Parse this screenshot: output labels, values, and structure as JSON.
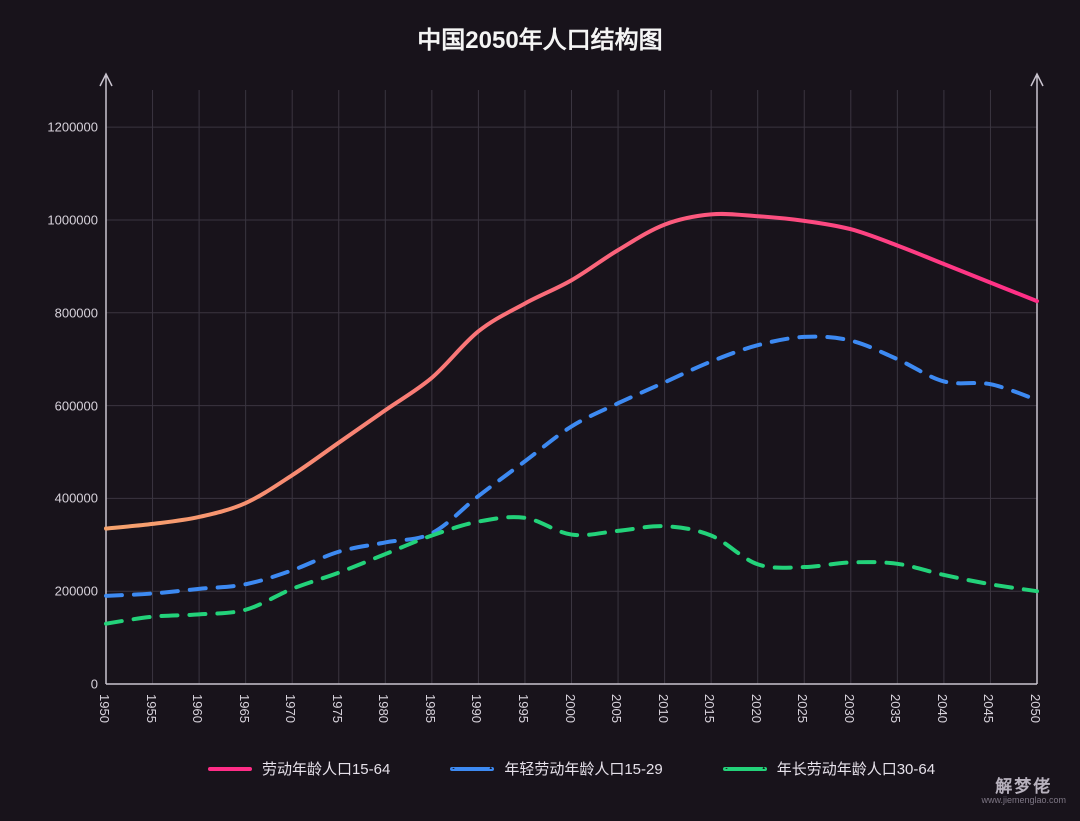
{
  "chart": {
    "type": "line",
    "title": "中国2050年人口结构图",
    "title_fontsize": 24,
    "title_color": "#f5f5f5",
    "background_color": "#18131b",
    "grid_color": "#3a3540",
    "axis_color": "#c9c4cf",
    "tick_label_color": "#d7d2db",
    "tick_fontsize": 13,
    "line_width": 4,
    "x": {
      "categories": [
        1950,
        1955,
        1960,
        1965,
        1970,
        1975,
        1980,
        1985,
        1990,
        1995,
        2000,
        2005,
        2010,
        2015,
        2020,
        2025,
        2030,
        2035,
        2040,
        2045,
        2050
      ],
      "tick_rotation_deg": 90
    },
    "y": {
      "min": 0,
      "max": 1280000,
      "ticks": [
        0,
        200000,
        400000,
        600000,
        800000,
        1000000,
        1200000
      ]
    },
    "series": [
      {
        "id": "s1",
        "label": "劳动年龄人口15-64",
        "color_start": "#f6a36d",
        "color_end": "#ff2d87",
        "gradient": true,
        "dash": "solid",
        "values": [
          335000,
          345000,
          360000,
          390000,
          450000,
          520000,
          590000,
          660000,
          760000,
          820000,
          870000,
          935000,
          990000,
          1012000,
          1008000,
          998000,
          980000,
          945000,
          905000,
          865000,
          825000
        ]
      },
      {
        "id": "s2",
        "label": "年轻劳动年龄人口15-29",
        "color": "#3d8af2",
        "dash": "dashed",
        "dash_pattern": "16 12",
        "values": [
          190000,
          195000,
          205000,
          215000,
          245000,
          285000,
          305000,
          325000,
          405000,
          480000,
          555000,
          605000,
          650000,
          695000,
          730000,
          748000,
          740000,
          700000,
          652000,
          646000,
          612000
        ]
      },
      {
        "id": "s3",
        "label": "年长劳动年龄人口30-64",
        "color": "#23d27a",
        "dash": "dashed",
        "dash_pattern": "16 12",
        "values": [
          130000,
          145000,
          150000,
          160000,
          205000,
          240000,
          280000,
          320000,
          350000,
          358000,
          322000,
          330000,
          340000,
          320000,
          258000,
          252000,
          262000,
          259000,
          235000,
          215000,
          200000
        ]
      }
    ],
    "legend": {
      "position": "bottom",
      "fontsize": 15,
      "color": "#e6e1ea"
    }
  },
  "watermark": {
    "brand": "解梦佬",
    "url": "www.jiemenglao.com",
    "brand_color": "#b7b1bd",
    "url_color": "#7d7684"
  }
}
